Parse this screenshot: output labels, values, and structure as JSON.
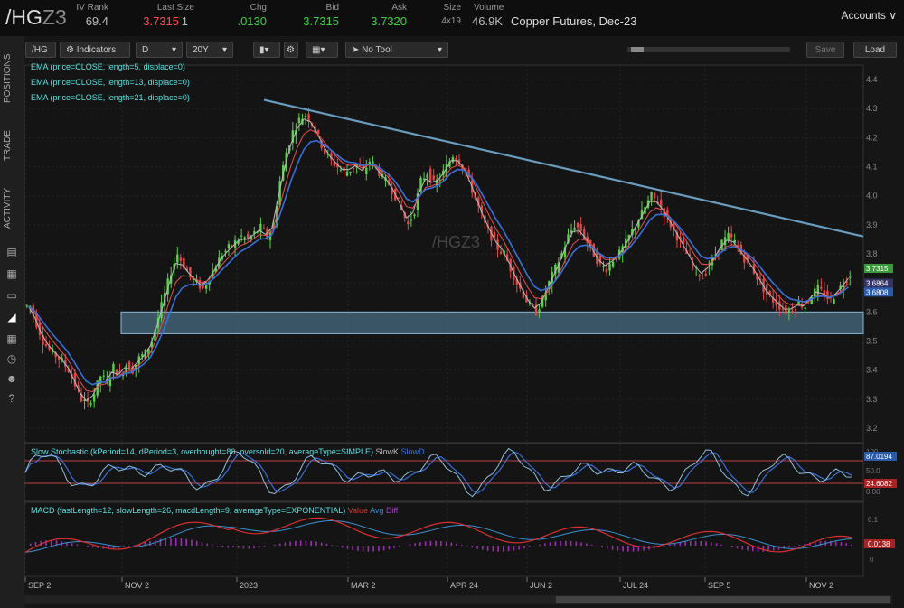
{
  "header": {
    "symbol_main": "/HG",
    "symbol_suffix": "Z3",
    "labels": [
      "IV Rank",
      "Last Size",
      "Chg",
      "Bid",
      "Ask",
      "Size",
      "Volume"
    ],
    "values": {
      "iv_rank": "69.4",
      "last": "3.7315",
      "last_size": "1",
      "chg": ".0130",
      "bid": "3.7315",
      "ask": "3.7320",
      "size": "4x19",
      "volume": "46.9K"
    },
    "description": "Copper Futures, Dec-23",
    "accounts": "Accounts"
  },
  "sidebar": {
    "tabs": [
      "POSITIONS",
      "TRADE",
      "ACTIVITY"
    ]
  },
  "toolbar": {
    "symbol": "/HG",
    "indicators": "Indicators",
    "aggregation": "D",
    "range": "20Y",
    "tool": "No Tool",
    "save": "Save",
    "load": "Load"
  },
  "chart_data": [
    {
      "type": "candlestick",
      "symbol_watermark": "/HGZ3",
      "legend": [
        "EMA (price=CLOSE, length=5, displace=0)",
        "EMA (price=CLOSE, length=13, displace=0)",
        "EMA (price=CLOSE, length=21, displace=0)"
      ],
      "ylim": [
        3.15,
        4.45
      ],
      "yticks": [
        4.4,
        4.3,
        4.2,
        4.1,
        4.0,
        3.9,
        3.8,
        3.7,
        3.6,
        3.5,
        3.4,
        3.3,
        3.2
      ],
      "x_ticks": [
        "SEP 2",
        "NOV 2",
        "2023",
        "MAR 2",
        "APR 24",
        "JUN 2",
        "JUL 24",
        "SEP 5",
        "NOV 2"
      ],
      "x_tick_positions": [
        0.0,
        0.1,
        0.37,
        0.7,
        0.9,
        1.02,
        1.16,
        1.36,
        1.4
      ],
      "closes": [
        3.62,
        3.56,
        3.5,
        3.47,
        3.45,
        3.43,
        3.4,
        3.35,
        3.3,
        3.28,
        3.32,
        3.38,
        3.36,
        3.41,
        3.38,
        3.42,
        3.4,
        3.44,
        3.46,
        3.5,
        3.58,
        3.66,
        3.74,
        3.8,
        3.76,
        3.72,
        3.7,
        3.68,
        3.72,
        3.76,
        3.8,
        3.82,
        3.84,
        3.86,
        3.85,
        3.87,
        3.89,
        3.86,
        3.9,
        4.05,
        4.15,
        4.22,
        4.26,
        4.28,
        4.25,
        4.2,
        4.15,
        4.12,
        4.1,
        4.08,
        4.09,
        4.11,
        4.08,
        4.12,
        4.1,
        4.06,
        4.04,
        4.0,
        3.95,
        3.9,
        3.95,
        4.05,
        4.08,
        4.04,
        4.06,
        4.1,
        4.14,
        4.12,
        4.08,
        4.02,
        3.96,
        3.9,
        3.86,
        3.82,
        3.8,
        3.75,
        3.7,
        3.66,
        3.62,
        3.6,
        3.64,
        3.7,
        3.75,
        3.8,
        3.86,
        3.9,
        3.88,
        3.84,
        3.8,
        3.76,
        3.75,
        3.78,
        3.8,
        3.84,
        3.88,
        3.92,
        3.96,
        4.0,
        3.98,
        3.94,
        3.9,
        3.86,
        3.82,
        3.78,
        3.74,
        3.72,
        3.76,
        3.8,
        3.84,
        3.86,
        3.84,
        3.8,
        3.77,
        3.74,
        3.7,
        3.66,
        3.64,
        3.62,
        3.6,
        3.61,
        3.63,
        3.62,
        3.66,
        3.68,
        3.66,
        3.64,
        3.67,
        3.7,
        3.73
      ],
      "support_zone": [
        3.525,
        3.6
      ],
      "trendline": [
        [
          3.5,
          4.33
        ],
        [
          15.0,
          3.86
        ]
      ],
      "price_labels": [
        "3.7315",
        "3.6864",
        "3.6808"
      ]
    },
    {
      "type": "line",
      "title": "Slow Stochastic (kPeriod=14, dPeriod=3, overbought=80, oversold=20, averageType=SIMPLE)",
      "series": [
        {
          "name": "SlowK"
        },
        {
          "name": "SlowD"
        }
      ],
      "ylim": [
        0,
        100
      ],
      "levels": [
        80,
        20
      ],
      "ytick_labels": [
        "100",
        "50.0",
        "0.00"
      ],
      "value_labels": [
        "87.0194",
        "24.6082"
      ]
    },
    {
      "type": "bar",
      "title": "MACD (fastLength=12, slowLength=26, macdLength=9, averageType=EXPONENTIAL)",
      "series": [
        {
          "name": "Value"
        },
        {
          "name": "Avg"
        },
        {
          "name": "Diff"
        }
      ],
      "ytick_labels": [
        "0.1",
        "0"
      ],
      "value_labels": [
        "0.0138"
      ]
    }
  ]
}
